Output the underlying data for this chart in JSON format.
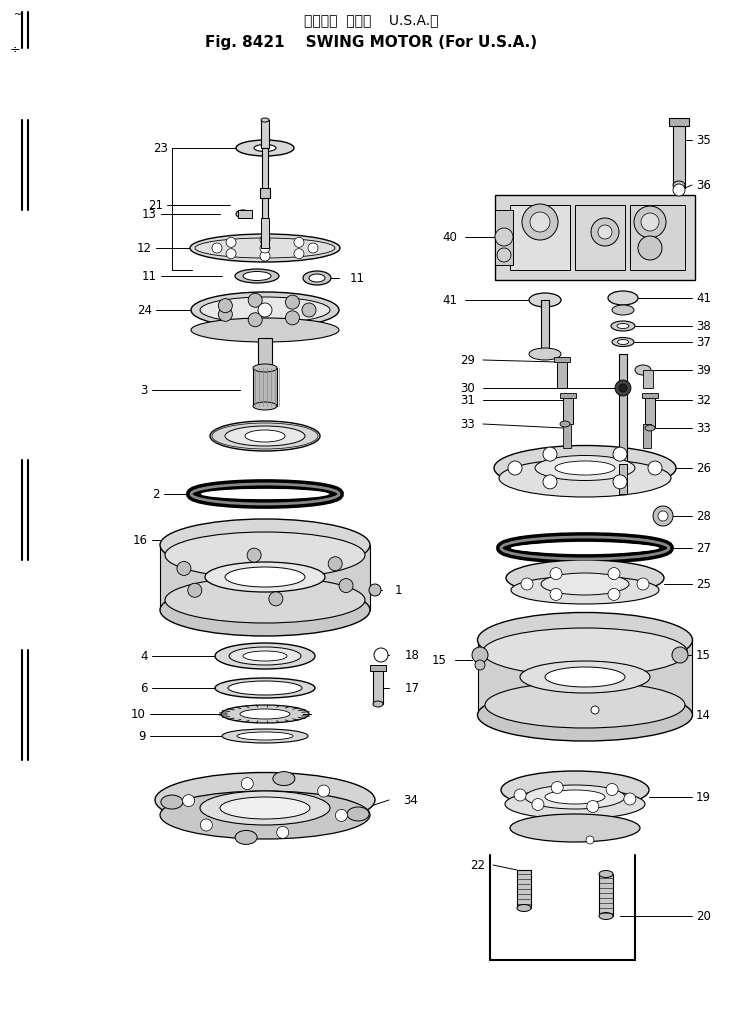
{
  "title_jp": "スイング  モータ    U.S.A.向",
  "title_en": "Fig. 8421    SWING MOTOR (For U.S.A.)",
  "bg_color": "#ffffff",
  "fig_width": 7.42,
  "fig_height": 10.13,
  "dpi": 100
}
